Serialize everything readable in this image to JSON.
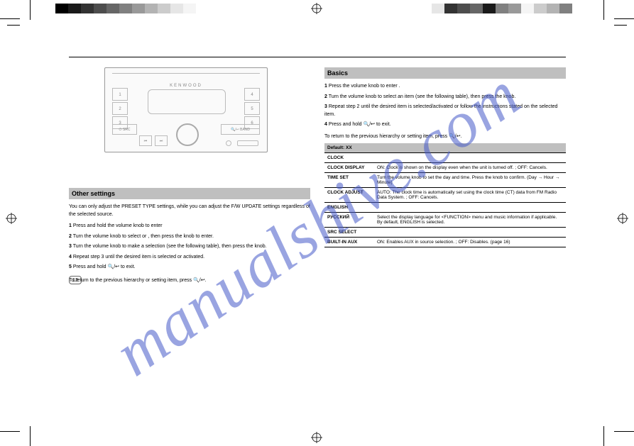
{
  "watermark": "manualshive.com",
  "colorbars": {
    "left": [
      "#000000",
      "#1a1a1a",
      "#333333",
      "#4d4d4d",
      "#666666",
      "#808080",
      "#999999",
      "#b3b3b3",
      "#cccccc",
      "#e6e6e6",
      "#f5f5f5",
      "#ffffff"
    ],
    "right": [
      "#ffffff",
      "#e6e6e6",
      "#333333",
      "#4d4d4d",
      "#666666",
      "#1a1a1a",
      "#808080",
      "#999999",
      "#f5f5f5",
      "#cccccc",
      "#b3b3b3",
      "#808080"
    ]
  },
  "device": {
    "brand": "KENWOOD",
    "left_buttons": [
      "1",
      "2",
      "3"
    ],
    "right_buttons": [
      "4",
      "5",
      "6"
    ],
    "bottom_left": [
      "⏮",
      "⏭"
    ],
    "src_button": "⏻ SRC",
    "band_button": "🔍/↩  BAND"
  },
  "left": {
    "section_title": "Other settings",
    "intro": "You can only adjust the PRESET TYPE settings, while you can adjust the F/W UPDATE settings regardless of the selected source.",
    "steps": [
      {
        "n": "1",
        "t": "Press and hold the volume knob to enter <AUDIO CONTROL>."
      },
      {
        "n": "2",
        "t": "Turn the volume knob to select <PRESET TYPE> or <F/W UPDATE>, then press the knob to enter."
      },
      {
        "n": "3",
        "t": "Turn the volume knob to make a selection (see the following table), then press the knob."
      },
      {
        "n": "4",
        "t": "Repeat step 3 until the desired item is selected or activated."
      },
      {
        "n": "5",
        "t": "Press and hold 🔍/↩ to exit."
      }
    ],
    "note": "To return to the previous hierarchy or setting item, press 🔍/↩.",
    "pagenum": "12"
  },
  "right": {
    "section_title": "Basics",
    "steps": [
      {
        "n": "1",
        "t": "Press the volume knob to enter <FUNCTION>."
      },
      {
        "n": "2",
        "t": "Turn the volume knob to select an item (see the following table), then press the knob."
      },
      {
        "n": "3",
        "t": "Repeat step 2 until the desired item is selected/activated or follow the instructions stated on the selected item."
      },
      {
        "n": "4",
        "t": "Press and hold 🔍/↩ to exit."
      }
    ],
    "note": "To return to the previous hierarchy or setting item, press 🔍/↩.",
    "table": {
      "header": "Default: XX",
      "rows": [
        {
          "k": "CLOCK",
          "v": ""
        },
        {
          "k": "CLOCK DISPLAY",
          "v": "ON: Clock is shown on the display even when the unit is turned off. ; OFF: Cancels."
        },
        {
          "k": "TIME SET",
          "v": "Turn the volume knob to set the day and time. Press the knob to confirm. (Day → Hour → Minute)"
        },
        {
          "k": "CLOCK ADJUST",
          "v": "AUTO: The clock time is automatically set using the clock time (CT) data from FM Radio Data System. ; OFF: Cancels."
        },
        {
          "k": "ENGLISH",
          "v": ""
        },
        {
          "k": "РУССКИЙ",
          "v": "Select the display language for <FUNCTION> menu and music information if applicable. By default, ENGLISH is selected."
        },
        {
          "k": "SRC SELECT",
          "v": ""
        },
        {
          "k": "BUILT-IN AUX",
          "v": "ON: Enables AUX in source selection. ; OFF: Disables. (page 16)"
        }
      ]
    }
  }
}
